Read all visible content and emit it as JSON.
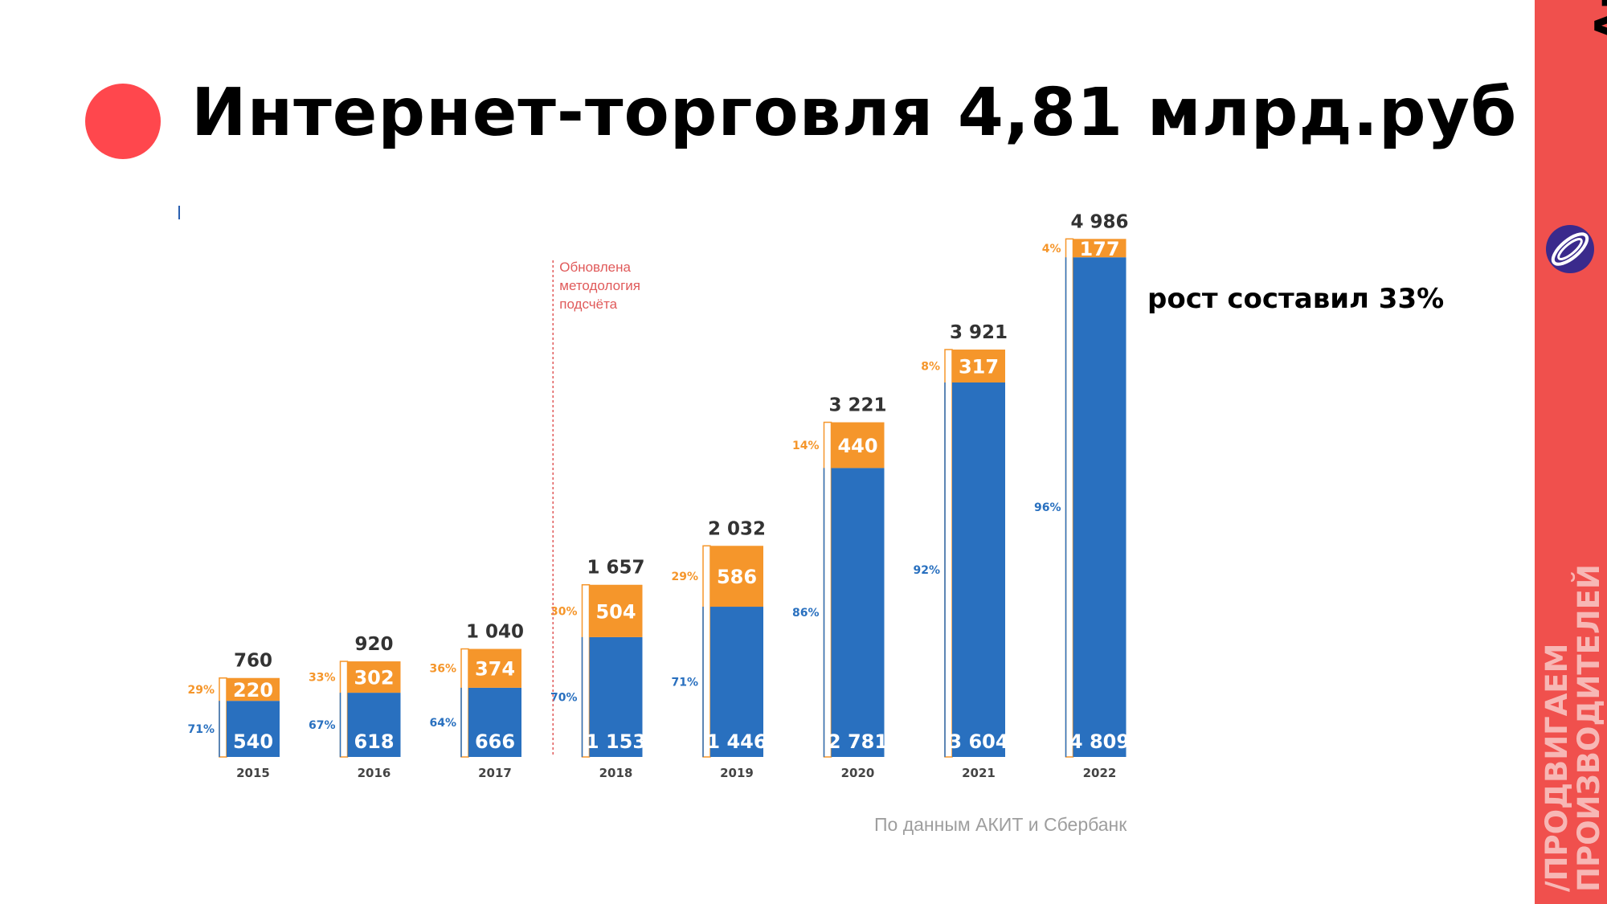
{
  "title": "Интернет-торговля 4,81 млрд.руб",
  "growth_note": "рост составил 33%",
  "source": "По данным АКИТ и Сбербанк",
  "methodology_note": [
    "Обновлена",
    "методология",
    "подсчёта"
  ],
  "brand": {
    "name": "Amado",
    "slogan_line1": "/ПРОДВИГАЕМ",
    "slogan_line2": "ПРОИЗВОДИТЕЛЕЙ",
    "color": "#f0504d"
  },
  "chart_data": {
    "type": "bar",
    "stacked": true,
    "categories": [
      "2015",
      "2016",
      "2017",
      "2018",
      "2019",
      "2020",
      "2021",
      "2022"
    ],
    "series": [
      {
        "color": "#2970bf",
        "values": [
          540,
          618,
          666,
          1153,
          1446,
          2781,
          3604,
          4809
        ],
        "value_labels": [
          "540",
          "618",
          "666",
          "1 153",
          "1 446",
          "2 781",
          "3 604",
          "4 809"
        ],
        "percent_labels": [
          "71%",
          "67%",
          "64%",
          "70%",
          "71%",
          "86%",
          "92%",
          "96%"
        ]
      },
      {
        "color": "#f5962b",
        "values": [
          220,
          302,
          374,
          504,
          586,
          440,
          317,
          177
        ],
        "value_labels": [
          "220",
          "302",
          "374",
          "504",
          "586",
          "440",
          "317",
          "177"
        ],
        "percent_labels": [
          "29%",
          "33%",
          "36%",
          "30%",
          "29%",
          "14%",
          "8%",
          "4%"
        ]
      }
    ],
    "totals": [
      760,
      920,
      1040,
      1657,
      2032,
      3221,
      3921,
      4986
    ],
    "total_labels": [
      "760",
      "920",
      "1 040",
      "1 657",
      "2 032",
      "3 221",
      "3 921",
      "4 986"
    ],
    "methodology_break_after": "2017",
    "grid": false,
    "legend": "none"
  }
}
